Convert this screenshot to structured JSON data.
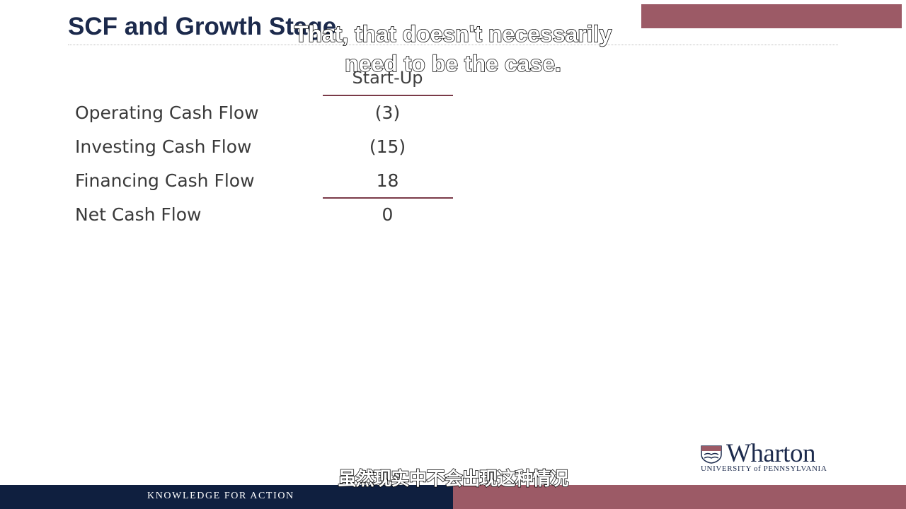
{
  "slide": {
    "title": "SCF and Growth Stage"
  },
  "table": {
    "column_header": "Start-Up",
    "rows": [
      {
        "label": "Operating Cash Flow",
        "value": "(3)"
      },
      {
        "label": "Investing Cash Flow",
        "value": "(15)"
      },
      {
        "label": "Financing Cash Flow",
        "value": "18"
      },
      {
        "label": "Net Cash Flow",
        "value": "0"
      }
    ]
  },
  "subtitles": {
    "english_line1": "That, that doesn't necessarily",
    "english_line2": "need to be the case.",
    "chinese": "虽然现实中不会出现这种情况"
  },
  "logo": {
    "name": "Wharton",
    "subtitle": "UNIVERSITY of PENNSYLVANIA",
    "icon": "university-shield-icon"
  },
  "footer": {
    "tagline": "KNOWLEDGE FOR ACTION"
  },
  "colors": {
    "navy": "#0f1f3f",
    "maroon": "#9c5a66",
    "title": "#1c2a4c"
  }
}
